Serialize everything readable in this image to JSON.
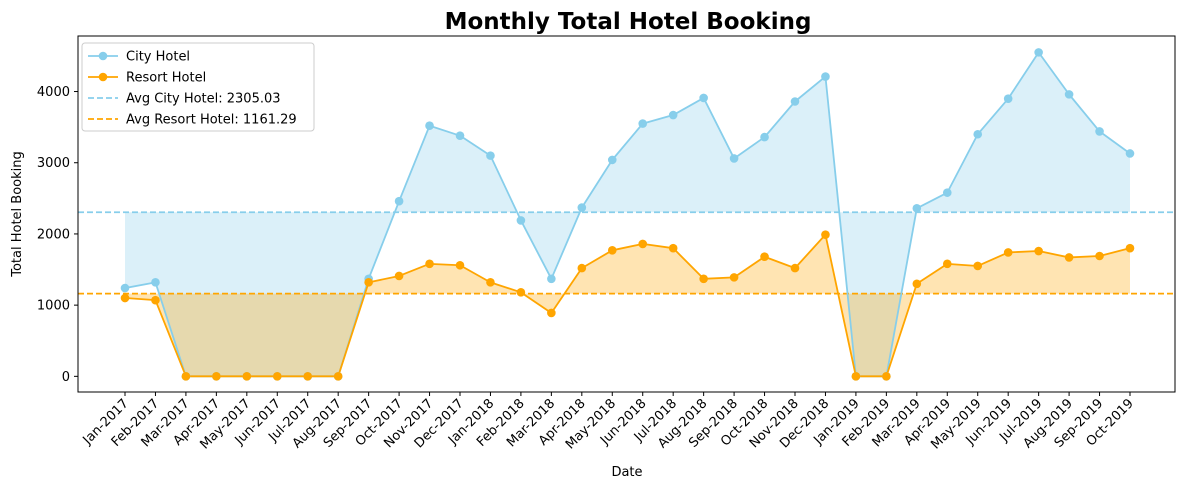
{
  "chart_data": {
    "type": "line",
    "title": "Monthly Total Hotel Booking",
    "xlabel": "Date",
    "ylabel": "Total Hotel Booking",
    "categories": [
      "Jan-2017",
      "Feb-2017",
      "Mar-2017",
      "Apr-2017",
      "May-2017",
      "Jun-2017",
      "Jul-2017",
      "Aug-2017",
      "Sep-2017",
      "Oct-2017",
      "Nov-2017",
      "Dec-2017",
      "Jan-2018",
      "Feb-2018",
      "Mar-2018",
      "Apr-2018",
      "May-2018",
      "Jun-2018",
      "Jul-2018",
      "Aug-2018",
      "Sep-2018",
      "Oct-2018",
      "Nov-2018",
      "Dec-2018",
      "Jan-2019",
      "Feb-2019",
      "Mar-2019",
      "Apr-2019",
      "May-2019",
      "Jun-2019",
      "Jul-2019",
      "Aug-2019",
      "Sep-2019",
      "Oct-2019"
    ],
    "yticks": [
      0,
      1000,
      2000,
      3000,
      4000
    ],
    "ylim": [
      -220,
      4780
    ],
    "grid": false,
    "legend_position": "top-left",
    "series": [
      {
        "name": "City Hotel",
        "color": "#87ceeb",
        "fill_color": "#87ceeb",
        "values": [
          1240,
          1320,
          0,
          0,
          0,
          0,
          0,
          0,
          1370,
          2460,
          3520,
          3380,
          3100,
          2190,
          1370,
          2370,
          3040,
          3550,
          3670,
          3910,
          3060,
          3360,
          3860,
          4210,
          0,
          0,
          2360,
          2580,
          3400,
          3900,
          4550,
          3960,
          3440,
          3130
        ]
      },
      {
        "name": "Resort Hotel",
        "color": "#ffa500",
        "fill_color": "#ffa500",
        "values": [
          1100,
          1070,
          0,
          0,
          0,
          0,
          0,
          0,
          1320,
          1410,
          1580,
          1560,
          1320,
          1180,
          890,
          1520,
          1770,
          1860,
          1800,
          1370,
          1390,
          1680,
          1520,
          1990,
          0,
          0,
          1300,
          1580,
          1550,
          1740,
          1760,
          1670,
          1690,
          1800
        ]
      }
    ],
    "reference_lines": [
      {
        "name": "Avg City Hotel: 2305.03",
        "value": 2305.03,
        "color": "#87ceeb",
        "style": "dashed"
      },
      {
        "name": "Avg Resort Hotel: 1161.29",
        "value": 1161.29,
        "color": "#ffa500",
        "style": "dashed"
      }
    ]
  }
}
